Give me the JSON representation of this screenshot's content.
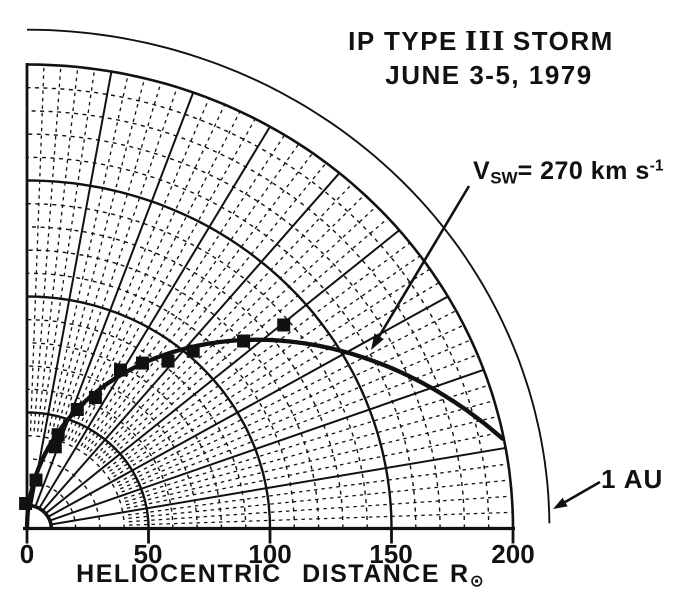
{
  "colors": {
    "ink": "#111111",
    "paper": "#ffffff"
  },
  "header": {
    "title_prefix": "IP TYPE",
    "title_numeral": "III",
    "title_suffix": "STORM",
    "subtitle": "JUNE 3-5, 1979"
  },
  "annotations": {
    "vsw": {
      "var": "V",
      "var_sub": "SW",
      "rest": "= 270 km s",
      "exp": "-1"
    },
    "one_au": {
      "label": "1 AU",
      "r_rsun": 215
    }
  },
  "axis": {
    "label_text": "HELIOCENTRIC DISTANCE",
    "label_symbol": "R",
    "label_symbol_sub": "⊙",
    "tick_labels": [
      "0",
      "50",
      "100",
      "150",
      "200"
    ],
    "tick_values": [
      0,
      50,
      100,
      150,
      200
    ]
  },
  "chart_data": {
    "type": "scatter",
    "projection": "polar-quadrant",
    "title": "IP TYPE III STORM",
    "subtitle": "JUNE 3-5, 1979",
    "xlabel": "HELIOCENTRIC DISTANCE R⊙ (solar radii)",
    "r_max": 200,
    "r_ticks": [
      0,
      50,
      100,
      150,
      200
    ],
    "angle_range_deg": [
      0,
      90
    ],
    "grid": {
      "arc_solid_step": 50,
      "arc_dashed_step": 10,
      "inner_arc_r": 10,
      "radial_solid_step_deg": 10,
      "radial_dashed_step_deg": 2,
      "dashed_radial_r_start": 42
    },
    "one_au_arc_r": 215,
    "spiral": {
      "model": "Parker spiral",
      "v_sw_km_s": 270,
      "k_rsun_per_rad": 145,
      "theta_start_deg": 90,
      "theta_end_deg": 11.05
    },
    "points": [
      {
        "r": 10.8,
        "theta_deg": 93.0
      },
      {
        "r": 21.2,
        "theta_deg": 79.9
      },
      {
        "r": 37.1,
        "theta_deg": 71.7
      },
      {
        "r": 42.4,
        "theta_deg": 72.4
      },
      {
        "r": 55.3,
        "theta_deg": 68.0
      },
      {
        "r": 63.1,
        "theta_deg": 63.5
      },
      {
        "r": 78.4,
        "theta_deg": 60.6
      },
      {
        "r": 85.7,
        "theta_deg": 56.3
      },
      {
        "r": 92.6,
        "theta_deg": 51.2
      },
      {
        "r": 102.6,
        "theta_deg": 48.2
      },
      {
        "r": 120.3,
        "theta_deg": 42.2
      },
      {
        "r": 137.3,
        "theta_deg": 39.7
      }
    ],
    "legend": "none",
    "marker": "filled-square"
  }
}
